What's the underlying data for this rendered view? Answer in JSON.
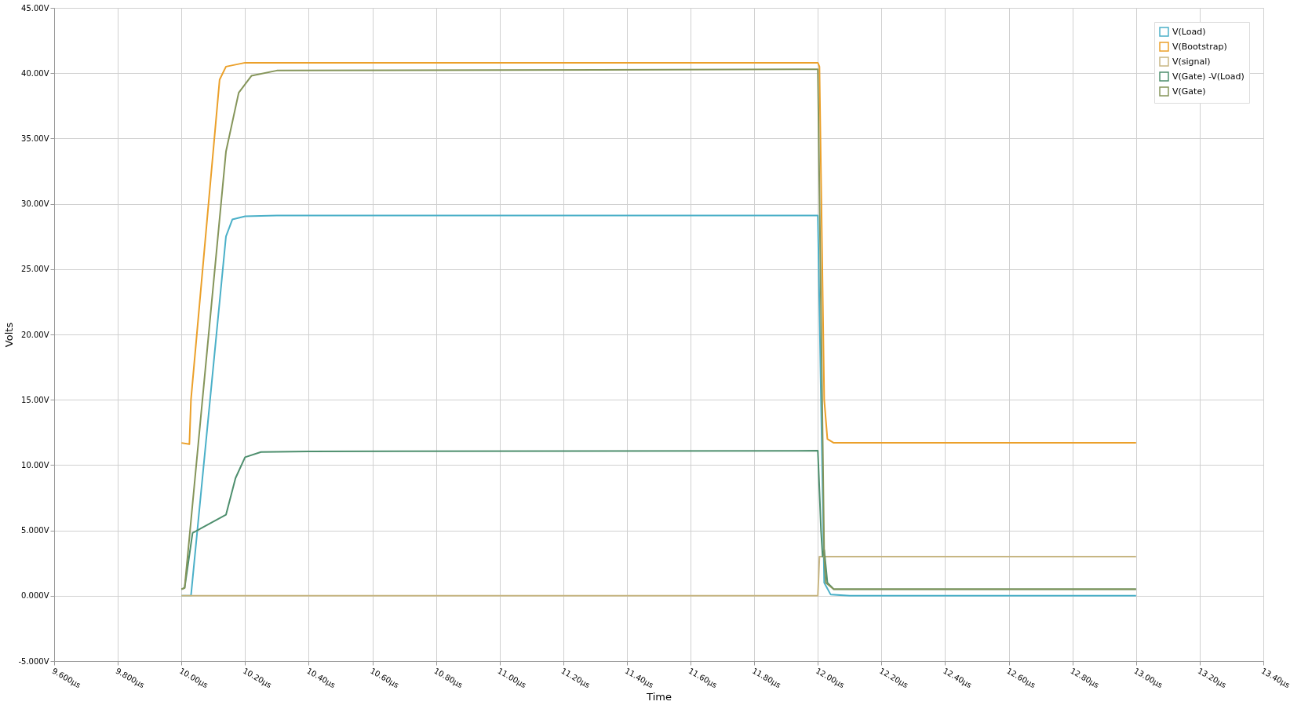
{
  "chart_data": {
    "type": "line",
    "xlabel": "Time",
    "ylabel": "Volts",
    "grid": true,
    "legend": "top right",
    "marker": "none",
    "line_style": "solid",
    "xlim": [
      9.6,
      13.4
    ],
    "ylim": [
      -5,
      45
    ],
    "xticks": [
      {
        "value": 9.6,
        "label": "9.600µs"
      },
      {
        "value": 9.8,
        "label": "9.800µs"
      },
      {
        "value": 10.0,
        "label": "10.00µs"
      },
      {
        "value": 10.2,
        "label": "10.20µs"
      },
      {
        "value": 10.4,
        "label": "10.40µs"
      },
      {
        "value": 10.6,
        "label": "10.60µs"
      },
      {
        "value": 10.8,
        "label": "10.80µs"
      },
      {
        "value": 11.0,
        "label": "11.00µs"
      },
      {
        "value": 11.2,
        "label": "11.20µs"
      },
      {
        "value": 11.4,
        "label": "11.40µs"
      },
      {
        "value": 11.6,
        "label": "11.60µs"
      },
      {
        "value": 11.8,
        "label": "11.80µs"
      },
      {
        "value": 12.0,
        "label": "12.00µs"
      },
      {
        "value": 12.2,
        "label": "12.20µs"
      },
      {
        "value": 12.4,
        "label": "12.40µs"
      },
      {
        "value": 12.6,
        "label": "12.60µs"
      },
      {
        "value": 12.8,
        "label": "12.80µs"
      },
      {
        "value": 13.0,
        "label": "13.00µs"
      },
      {
        "value": 13.2,
        "label": "13.20µs"
      },
      {
        "value": 13.4,
        "label": "13.40µs"
      }
    ],
    "yticks": [
      {
        "value": -5,
        "label": "-5.000V"
      },
      {
        "value": 0,
        "label": "0.000V"
      },
      {
        "value": 5,
        "label": "5.000V"
      },
      {
        "value": 10,
        "label": "10.00V"
      },
      {
        "value": 15,
        "label": "15.00V"
      },
      {
        "value": 20,
        "label": "20.00V"
      },
      {
        "value": 25,
        "label": "25.00V"
      },
      {
        "value": 30,
        "label": "30.00V"
      },
      {
        "value": 35,
        "label": "35.00V"
      },
      {
        "value": 40,
        "label": "40.00V"
      },
      {
        "value": 45,
        "label": "45.00V"
      }
    ],
    "series": [
      {
        "name": "V(Load)",
        "color": "#4bb0c8",
        "x": [
          10.0,
          10.03,
          10.14,
          10.16,
          10.2,
          10.3,
          12.0,
          12.01,
          12.02,
          12.04,
          12.1,
          13.0
        ],
        "values": [
          0,
          0,
          27.5,
          28.8,
          29.05,
          29.1,
          29.1,
          15,
          1,
          0.1,
          0,
          0
        ]
      },
      {
        "name": "V(Bootstrap)",
        "color": "#eba02a",
        "x": [
          10.0,
          10.025,
          10.03,
          10.12,
          10.14,
          10.2,
          12.0,
          12.005,
          12.02,
          12.03,
          12.05,
          13.0
        ],
        "values": [
          11.7,
          11.6,
          15,
          39.5,
          40.5,
          40.8,
          40.8,
          40.5,
          15,
          12,
          11.7,
          11.7
        ]
      },
      {
        "name": "V(signal)",
        "color": "#c7b683",
        "x": [
          10.0,
          12.0,
          12.005,
          13.0
        ],
        "values": [
          0,
          0,
          3.0,
          3.0
        ]
      },
      {
        "name": "V(Gate) -V(Load)",
        "color": "#4e8f6e",
        "x": [
          10.0,
          10.01,
          10.035,
          10.14,
          10.17,
          10.2,
          10.25,
          10.4,
          12.0,
          12.01,
          12.015,
          12.02,
          12.03,
          12.05,
          13.0
        ],
        "values": [
          0.5,
          0.6,
          4.8,
          6.2,
          9,
          10.6,
          11.0,
          11.05,
          11.1,
          5,
          3.0,
          3.5,
          1,
          0.5,
          0.5
        ]
      },
      {
        "name": "V(Gate)",
        "color": "#85955a",
        "x": [
          10.0,
          10.01,
          10.14,
          10.18,
          10.22,
          10.3,
          12.0,
          12.02,
          12.025,
          12.05,
          13.0
        ],
        "values": [
          0.5,
          0.6,
          34,
          38.5,
          39.8,
          40.2,
          40.3,
          3,
          1,
          0.5,
          0.5
        ]
      }
    ]
  }
}
